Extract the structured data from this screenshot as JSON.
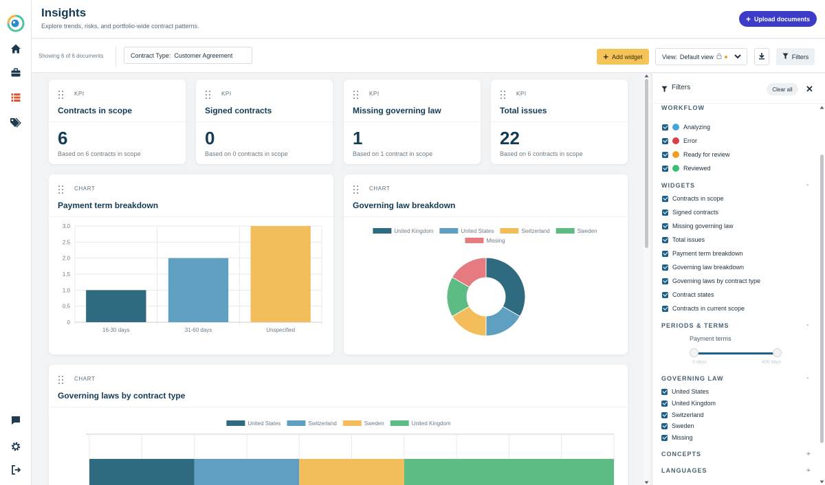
{
  "header": {
    "title": "Insights",
    "subtitle": "Explore trends, risks, and portfolio-wide contract patterns.",
    "upload_label": "Upload documents"
  },
  "toolbar": {
    "showing": "Showing 6 of 6 documents",
    "contract_type_label": "Contract Type:",
    "contract_type_value": "Customer Agreement",
    "add_widget_label": "Add widget",
    "view_label": "View:",
    "view_value": "Default view",
    "filters_label": "Filters"
  },
  "kpis": [
    {
      "kind": "KPI",
      "title": "Contracts in scope",
      "value": "6",
      "note": "Based on 6 contracts in scope"
    },
    {
      "kind": "KPI",
      "title": "Signed contracts",
      "value": "0",
      "note": "Based on 0 contracts in scope"
    },
    {
      "kind": "KPI",
      "title": "Missing governing law",
      "value": "1",
      "note": "Based on 1 contract in scope"
    },
    {
      "kind": "KPI",
      "title": "Total issues",
      "value": "22",
      "note": "Based on 6 contracts in scope"
    }
  ],
  "charts": {
    "payment": {
      "kind": "CHART",
      "title": "Payment term breakdown"
    },
    "governing": {
      "kind": "CHART",
      "title": "Governing law breakdown"
    },
    "by_type": {
      "kind": "CHART",
      "title": "Governing laws by contract type"
    }
  },
  "chart_data": [
    {
      "type": "bar",
      "title": "Payment term breakdown",
      "categories": [
        "16-30 days",
        "31-60 days",
        "Unspecified"
      ],
      "values": [
        1,
        2,
        3
      ],
      "colors": [
        "#2f6a80",
        "#5fa0c0",
        "#f4bd5c"
      ],
      "ylim": [
        0,
        3
      ],
      "yticks": [
        "0",
        "0.5",
        "1.0",
        "1.5",
        "2.0",
        "2.5",
        "3.0"
      ],
      "grid": true
    },
    {
      "type": "pie",
      "title": "Governing law breakdown",
      "donut": true,
      "labels": [
        "United Kingdom",
        "United States",
        "Switzerland",
        "Sweden",
        "Missing"
      ],
      "values": [
        2,
        1,
        1,
        1,
        1
      ],
      "colors": [
        "#2f6a80",
        "#5fa0c0",
        "#f4bd5c",
        "#5dbb84",
        "#e57a80"
      ],
      "legend": "top"
    },
    {
      "type": "bar",
      "stacked": true,
      "horizontal": true,
      "title": "Governing laws by contract type",
      "series": [
        {
          "name": "United States",
          "values": [
            1
          ],
          "color": "#2f6a80"
        },
        {
          "name": "Switzerland",
          "values": [
            1
          ],
          "color": "#5fa0c0"
        },
        {
          "name": "Sweden",
          "values": [
            1
          ],
          "color": "#f4bd5c"
        },
        {
          "name": "United Kingdom",
          "values": [
            2
          ],
          "color": "#5dbb84"
        }
      ],
      "legend": "top",
      "grid": true
    }
  ],
  "filters": {
    "title": "Filters",
    "clear_all": "Clear all",
    "workflow": {
      "label": "WORKFLOW",
      "items": [
        {
          "label": "Analyzing",
          "color": "#4aa3d8"
        },
        {
          "label": "Error",
          "color": "#d9404a"
        },
        {
          "label": "Ready for review",
          "color": "#f0a020"
        },
        {
          "label": "Reviewed",
          "color": "#3cbf74"
        }
      ]
    },
    "widgets": {
      "label": "WIDGETS",
      "toggle": "-",
      "items": [
        "Contracts in scope",
        "Signed contracts",
        "Missing governing law",
        "Total issues",
        "Payment term breakdown",
        "Governing law breakdown",
        "Governing laws by contract type",
        "Contract states",
        "Contracts in current scope"
      ]
    },
    "periods": {
      "label": "PERIODS & TERMS",
      "toggle": "-",
      "payment_terms_label": "Payment terms",
      "min_label": "0 days",
      "max_label": "400 days"
    },
    "governing_law": {
      "label": "GOVERNING LAW",
      "toggle": "-",
      "items": [
        "United States",
        "United Kingdom",
        "Switzerland",
        "Sweden",
        "Missing"
      ]
    },
    "concepts": {
      "label": "CONCEPTS",
      "toggle": "+"
    },
    "languages": {
      "label": "LANGUAGES",
      "toggle": "+"
    }
  }
}
